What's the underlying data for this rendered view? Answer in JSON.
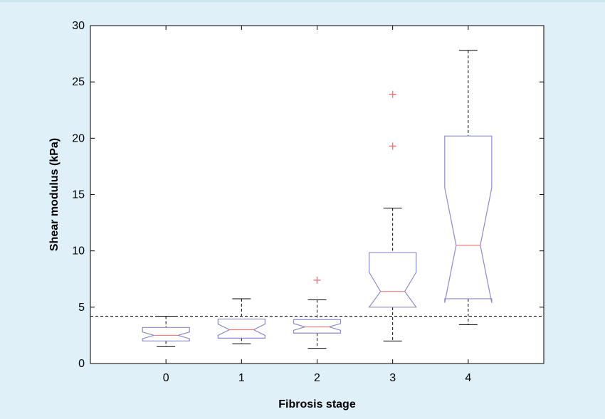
{
  "chart_data": {
    "type": "boxplot",
    "xlabel": "Fibrosis stage",
    "ylabel": "Shear modulus (kPa)",
    "ylim": [
      0,
      30
    ],
    "yticks": [
      0,
      5,
      10,
      15,
      20,
      25,
      30
    ],
    "categories": [
      "0",
      "1",
      "2",
      "3",
      "4"
    ],
    "xlim": [
      -1,
      5
    ],
    "notched": true,
    "threshold": 4.2,
    "grid": false,
    "colors": {
      "box": "#8a8ad0",
      "median": "#f07a7a",
      "outlier": "#f07a7a",
      "whisker": "#000000",
      "axis": "#000000",
      "plot_bg": "#ffffff",
      "page_bg": "#dff0f8"
    },
    "boxes": [
      {
        "category": "0",
        "whisker_low": 1.5,
        "q1": 2.0,
        "median": 2.5,
        "q3": 3.2,
        "notch_low": 2.2,
        "notch_high": 2.8,
        "whisker_high": 4.2,
        "outliers": []
      },
      {
        "category": "1",
        "whisker_low": 1.75,
        "q1": 2.25,
        "median": 3.0,
        "q3": 3.95,
        "notch_low": 2.5,
        "notch_high": 3.5,
        "whisker_high": 5.75,
        "outliers": []
      },
      {
        "category": "2",
        "whisker_low": 1.35,
        "q1": 2.7,
        "median": 3.25,
        "q3": 3.9,
        "notch_low": 2.95,
        "notch_high": 3.55,
        "whisker_high": 5.65,
        "outliers": [
          7.4
        ]
      },
      {
        "category": "3",
        "whisker_low": 2.0,
        "q1": 5.0,
        "median": 6.4,
        "q3": 9.85,
        "notch_low": 5.0,
        "notch_high": 8.1,
        "whisker_high": 13.8,
        "outliers": [
          19.3,
          23.9
        ]
      },
      {
        "category": "4",
        "whisker_low": 3.45,
        "q1": 5.75,
        "median": 10.5,
        "q3": 20.2,
        "notch_low": 5.4,
        "notch_high": 15.6,
        "whisker_high": 27.8,
        "outliers": []
      }
    ]
  }
}
